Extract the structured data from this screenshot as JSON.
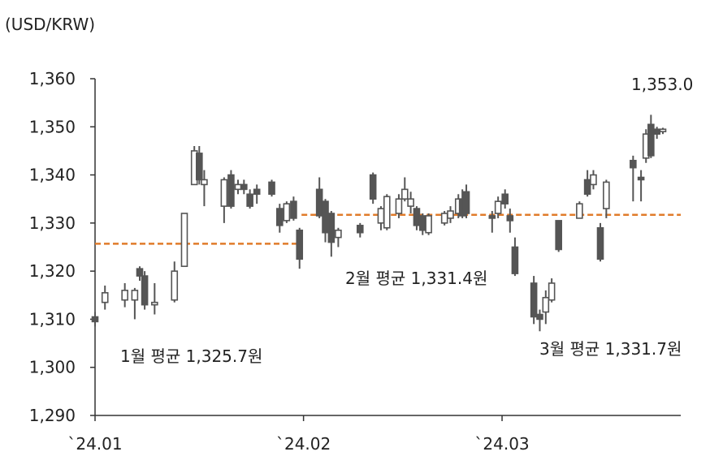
{
  "chart_data": {
    "type": "candlestick",
    "unit_label": "(USD/KRW)",
    "ylim": [
      1290,
      1360
    ],
    "yticks": [
      1290,
      1300,
      1310,
      1320,
      1330,
      1340,
      1350,
      1360
    ],
    "ytick_labels": [
      "1,290",
      "1,300",
      "1,310",
      "1,320",
      "1,330",
      "1,340",
      "1,350",
      "1,360"
    ],
    "x_range": [
      1,
      60
    ],
    "xticks": [
      {
        "label": "`24.01",
        "x": 1
      },
      {
        "label": "`24.02",
        "x": 22
      },
      {
        "label": "`24.03",
        "x": 42
      }
    ],
    "grid": false,
    "colors": {
      "up": "#ffffff",
      "down": "#555555",
      "wick": "#555555",
      "border": "#555555",
      "average": "#e07b2a",
      "axis": "#333333"
    },
    "candles": [
      {
        "x": 1,
        "open": 1310.5,
        "close": 1309.5,
        "high": 1311.5,
        "low": 1308.5
      },
      {
        "x": 2,
        "open": 1313.5,
        "close": 1315.5,
        "high": 1317.0,
        "low": 1312.0
      },
      {
        "x": 4,
        "open": 1314.0,
        "close": 1316.0,
        "high": 1317.5,
        "low": 1312.5
      },
      {
        "x": 5,
        "open": 1314.0,
        "close": 1316.0,
        "high": 1316.5,
        "low": 1310.0
      },
      {
        "x": 5.5,
        "open": 1320.5,
        "close": 1319.0,
        "high": 1321.0,
        "low": 1318.0
      },
      {
        "x": 6,
        "open": 1319.0,
        "close": 1313.0,
        "high": 1320.0,
        "low": 1312.0
      },
      {
        "x": 7,
        "open": 1313.0,
        "close": 1313.5,
        "high": 1317.5,
        "low": 1311.0
      },
      {
        "x": 9,
        "open": 1314.0,
        "close": 1320.0,
        "high": 1322.0,
        "low": 1313.5
      },
      {
        "x": 10,
        "open": 1321.0,
        "close": 1332.0,
        "high": 1332.0,
        "low": 1321.0
      },
      {
        "x": 11,
        "open": 1338.0,
        "close": 1345.0,
        "high": 1346.0,
        "low": 1338.0
      },
      {
        "x": 11.5,
        "open": 1344.5,
        "close": 1339.0,
        "high": 1346.0,
        "low": 1338.0
      },
      {
        "x": 12,
        "open": 1338.0,
        "close": 1339.0,
        "high": 1341.0,
        "low": 1333.5
      },
      {
        "x": 14,
        "open": 1333.5,
        "close": 1339.0,
        "high": 1339.5,
        "low": 1330.0
      },
      {
        "x": 14.7,
        "open": 1340.0,
        "close": 1333.5,
        "high": 1341.0,
        "low": 1333.0
      },
      {
        "x": 15.4,
        "open": 1337.0,
        "close": 1338.0,
        "high": 1339.0,
        "low": 1336.0
      },
      {
        "x": 16,
        "open": 1338.0,
        "close": 1337.0,
        "high": 1339.0,
        "low": 1336.0
      },
      {
        "x": 16.6,
        "open": 1336.0,
        "close": 1333.5,
        "high": 1337.0,
        "low": 1333.0
      },
      {
        "x": 17.3,
        "open": 1337.0,
        "close": 1336.0,
        "high": 1338.0,
        "low": 1334.0
      },
      {
        "x": 18.8,
        "open": 1338.5,
        "close": 1336.0,
        "high": 1339.0,
        "low": 1335.5
      },
      {
        "x": 19.6,
        "open": 1333.0,
        "close": 1329.5,
        "high": 1334.0,
        "low": 1328.0
      },
      {
        "x": 20.3,
        "open": 1330.5,
        "close": 1334.0,
        "high": 1334.5,
        "low": 1330.0
      },
      {
        "x": 21,
        "open": 1334.5,
        "close": 1331.0,
        "high": 1335.5,
        "low": 1330.5
      },
      {
        "x": 21.6,
        "open": 1328.5,
        "close": 1322.5,
        "high": 1329.0,
        "low": 1320.5
      },
      {
        "x": 23.6,
        "open": 1337.0,
        "close": 1331.5,
        "high": 1339.5,
        "low": 1331.0
      },
      {
        "x": 24.2,
        "open": 1334.5,
        "close": 1328.0,
        "high": 1335.0,
        "low": 1326.0
      },
      {
        "x": 24.8,
        "open": 1332.0,
        "close": 1326.0,
        "high": 1332.5,
        "low": 1323.0
      },
      {
        "x": 25.5,
        "open": 1327.0,
        "close": 1328.5,
        "high": 1329.0,
        "low": 1325.0
      },
      {
        "x": 27.7,
        "open": 1329.5,
        "close": 1328.0,
        "high": 1330.0,
        "low": 1327.0
      },
      {
        "x": 29,
        "open": 1340.0,
        "close": 1335.0,
        "high": 1340.5,
        "low": 1334.0
      },
      {
        "x": 29.8,
        "open": 1330.0,
        "close": 1333.0,
        "high": 1333.5,
        "low": 1328.5
      },
      {
        "x": 30.4,
        "open": 1329.0,
        "close": 1335.5,
        "high": 1336.0,
        "low": 1328.5
      },
      {
        "x": 31.6,
        "open": 1332.0,
        "close": 1335.0,
        "high": 1336.0,
        "low": 1331.0
      },
      {
        "x": 32.2,
        "open": 1335.0,
        "close": 1337.0,
        "high": 1339.5,
        "low": 1334.5
      },
      {
        "x": 32.8,
        "open": 1333.5,
        "close": 1335.0,
        "high": 1336.5,
        "low": 1332.0
      },
      {
        "x": 33.4,
        "open": 1333.0,
        "close": 1329.5,
        "high": 1333.5,
        "low": 1328.5
      },
      {
        "x": 34,
        "open": 1331.5,
        "close": 1328.5,
        "high": 1332.0,
        "low": 1327.5
      },
      {
        "x": 34.6,
        "open": 1328.0,
        "close": 1331.5,
        "high": 1332.0,
        "low": 1327.5
      },
      {
        "x": 36.2,
        "open": 1330.0,
        "close": 1332.0,
        "high": 1332.5,
        "low": 1329.5
      },
      {
        "x": 36.8,
        "open": 1331.0,
        "close": 1332.5,
        "high": 1333.5,
        "low": 1330.0
      },
      {
        "x": 37.6,
        "open": 1332.0,
        "close": 1335.0,
        "high": 1336.0,
        "low": 1331.0
      },
      {
        "x": 38,
        "open": 1335.0,
        "close": 1331.5,
        "high": 1337.0,
        "low": 1331.0
      },
      {
        "x": 38.4,
        "open": 1336.5,
        "close": 1332.0,
        "high": 1338.0,
        "low": 1331.0
      },
      {
        "x": 41,
        "open": 1331.5,
        "close": 1331.0,
        "high": 1332.5,
        "low": 1328.0
      },
      {
        "x": 41.6,
        "open": 1332.0,
        "close": 1334.5,
        "high": 1335.5,
        "low": 1331.0
      },
      {
        "x": 42.3,
        "open": 1336.0,
        "close": 1334.0,
        "high": 1337.0,
        "low": 1333.0
      },
      {
        "x": 42.8,
        "open": 1331.5,
        "close": 1330.5,
        "high": 1333.0,
        "low": 1328.0
      },
      {
        "x": 43.3,
        "open": 1325.0,
        "close": 1319.5,
        "high": 1327.0,
        "low": 1319.0
      },
      {
        "x": 45.2,
        "open": 1317.5,
        "close": 1310.5,
        "high": 1319.0,
        "low": 1309.0
      },
      {
        "x": 45.8,
        "open": 1311.0,
        "close": 1310.0,
        "high": 1312.0,
        "low": 1307.5
      },
      {
        "x": 46.4,
        "open": 1311.5,
        "close": 1314.5,
        "high": 1316.0,
        "low": 1309.0
      },
      {
        "x": 47,
        "open": 1314.0,
        "close": 1317.5,
        "high": 1318.5,
        "low": 1313.5
      },
      {
        "x": 47.7,
        "open": 1330.5,
        "close": 1324.5,
        "high": 1330.5,
        "low": 1324.0
      },
      {
        "x": 49.8,
        "open": 1331.0,
        "close": 1334.0,
        "high": 1334.5,
        "low": 1331.0
      },
      {
        "x": 50.6,
        "open": 1339.0,
        "close": 1336.0,
        "high": 1341.0,
        "low": 1335.5
      },
      {
        "x": 51.2,
        "open": 1338.0,
        "close": 1340.0,
        "high": 1341.0,
        "low": 1337.0
      },
      {
        "x": 51.9,
        "open": 1329.0,
        "close": 1322.5,
        "high": 1330.0,
        "low": 1322.0
      },
      {
        "x": 52.5,
        "open": 1333.0,
        "close": 1338.5,
        "high": 1339.0,
        "low": 1331.0
      },
      {
        "x": 55.2,
        "open": 1343.0,
        "close": 1341.5,
        "high": 1344.0,
        "low": 1334.5
      },
      {
        "x": 56,
        "open": 1339.5,
        "close": 1339.0,
        "high": 1341.0,
        "low": 1334.5
      },
      {
        "x": 56.5,
        "open": 1343.5,
        "close": 1348.5,
        "high": 1349.5,
        "low": 1342.5
      },
      {
        "x": 57,
        "open": 1350.5,
        "close": 1344.0,
        "high": 1352.5,
        "low": 1343.5
      },
      {
        "x": 57.6,
        "open": 1349.5,
        "close": 1348.5,
        "high": 1350.0,
        "low": 1347.5
      },
      {
        "x": 58.2,
        "open": 1349.0,
        "close": 1349.5,
        "high": 1349.8,
        "low": 1348.5
      }
    ],
    "averages": [
      {
        "x0": 1,
        "x1": 21.8,
        "value": 1325.7
      },
      {
        "x0": 21.8,
        "x1": 60,
        "value": 1331.7
      }
    ],
    "annotations": {
      "jan_avg": "1월 평균 1,325.7원",
      "feb_avg": "2월 평균 1,331.4원",
      "mar_avg": "3월 평균 1,331.7원",
      "last_value": "1,353.0"
    }
  }
}
